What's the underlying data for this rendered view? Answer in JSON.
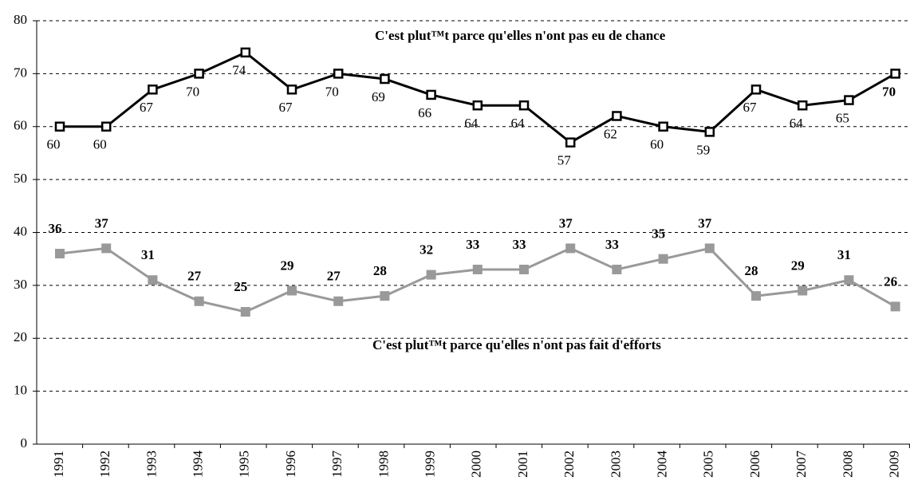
{
  "chart_data": {
    "type": "line",
    "categories": [
      "1991",
      "1992",
      "1993",
      "1994",
      "1995",
      "1996",
      "1997",
      "1998",
      "1999",
      "2000",
      "2001",
      "2002",
      "2003",
      "2004",
      "2005",
      "2006",
      "2007",
      "2008",
      "2009"
    ],
    "series": [
      {
        "name": "C'est plut™t parce qu'elles n'ont pas eu de chance",
        "color": "#000000",
        "values": [
          60,
          60,
          67,
          70,
          74,
          67,
          70,
          69,
          66,
          64,
          64,
          57,
          62,
          60,
          59,
          67,
          64,
          65,
          70
        ]
      },
      {
        "name": "C'est plut™t parce qu'elles n'ont pas fait d'efforts",
        "color": "#999999",
        "values": [
          36,
          37,
          31,
          27,
          25,
          29,
          27,
          28,
          32,
          33,
          33,
          37,
          33,
          35,
          37,
          28,
          29,
          31,
          26
        ]
      }
    ],
    "ylim": [
      0,
      80
    ],
    "yticks": [
      0,
      10,
      20,
      30,
      40,
      50,
      60,
      70,
      80
    ],
    "grid": true
  }
}
